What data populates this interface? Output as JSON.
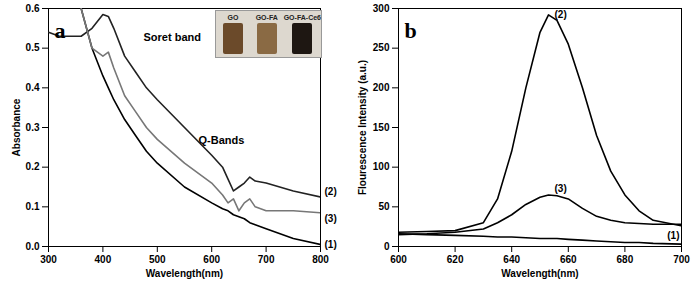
{
  "chart_data": [
    {
      "type": "line",
      "title": "a",
      "x_label": "Wavelength(nm)",
      "y_label": "Absorbance",
      "xlim": [
        300,
        800
      ],
      "xticks": [
        300,
        400,
        500,
        600,
        700,
        800
      ],
      "ylim": [
        0,
        0.6
      ],
      "yticks": [
        {
          "value": 0,
          "label": "0.0"
        },
        0.1,
        0.2,
        0.3,
        0.4,
        0.5,
        0.6
      ],
      "annotations": [
        "Soret band",
        "Q-Bands"
      ],
      "inset": [
        "GO",
        "GO-FA",
        "GO-FA-Ce6"
      ],
      "x": [
        300,
        320,
        340,
        360,
        380,
        400,
        410,
        420,
        440,
        460,
        480,
        500,
        550,
        600,
        620,
        630,
        640,
        650,
        660,
        670,
        680,
        700,
        750,
        800
      ],
      "series": [
        {
          "name": "(1)",
          "color": "#000000",
          "values": [
            null,
            null,
            null,
            0.6,
            0.5,
            0.43,
            0.4,
            0.37,
            0.32,
            0.28,
            0.24,
            0.21,
            0.15,
            0.11,
            0.095,
            0.09,
            0.08,
            0.075,
            0.07,
            0.06,
            0.055,
            0.045,
            0.02,
            0.005
          ]
        },
        {
          "name": "(2)",
          "color": "#222222",
          "values": [
            0.54,
            0.53,
            0.53,
            0.53,
            0.55,
            0.585,
            0.58,
            0.55,
            0.48,
            0.44,
            0.4,
            0.37,
            0.3,
            0.23,
            0.2,
            0.17,
            0.14,
            0.15,
            0.16,
            0.175,
            0.165,
            0.16,
            0.14,
            0.125
          ]
        },
        {
          "name": "(3)",
          "color": "#777777",
          "values": [
            null,
            null,
            null,
            0.6,
            0.5,
            0.48,
            0.49,
            0.45,
            0.38,
            0.34,
            0.3,
            0.27,
            0.21,
            0.16,
            0.13,
            0.11,
            0.12,
            0.09,
            0.11,
            0.12,
            0.1,
            0.09,
            0.09,
            0.085
          ]
        }
      ]
    },
    {
      "type": "line",
      "title": "b",
      "x_label": "Wavelength(nm)",
      "y_label": "Flourescence Intensity (a.u.)",
      "xlim": [
        600,
        700
      ],
      "xticks": [
        600,
        620,
        640,
        660,
        680,
        700
      ],
      "ylim": [
        0,
        300
      ],
      "yticks": [
        0,
        50,
        100,
        150,
        200,
        250,
        300
      ],
      "x": [
        600,
        610,
        620,
        630,
        635,
        640,
        645,
        650,
        653,
        656,
        660,
        665,
        670,
        675,
        680,
        685,
        690,
        700
      ],
      "series": [
        {
          "name": "(1)",
          "color": "#000000",
          "values": [
            16,
            15,
            14,
            13,
            12,
            12,
            11,
            10,
            10,
            10,
            9,
            8,
            7,
            6,
            5,
            5,
            4,
            3
          ]
        },
        {
          "name": "(2)",
          "color": "#000000",
          "values": [
            18,
            19,
            20,
            30,
            60,
            120,
            200,
            270,
            292,
            285,
            255,
            200,
            140,
            95,
            65,
            45,
            33,
            26
          ]
        },
        {
          "name": "(3)",
          "color": "#000000",
          "values": [
            15,
            16,
            18,
            22,
            30,
            40,
            53,
            62,
            65,
            64,
            60,
            48,
            38,
            33,
            30,
            29,
            28,
            28
          ]
        }
      ]
    }
  ]
}
